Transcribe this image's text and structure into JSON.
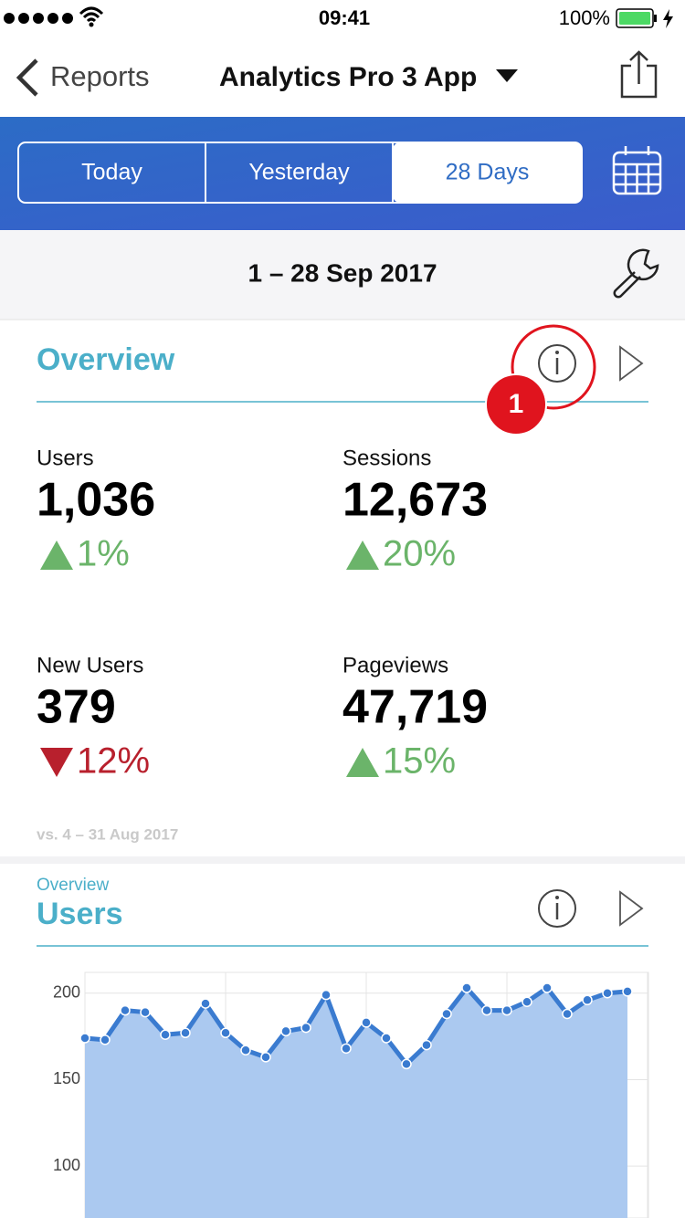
{
  "status_bar": {
    "time": "09:41",
    "battery": "100%"
  },
  "nav": {
    "back": "Reports",
    "title": "Analytics Pro 3 App"
  },
  "segments": [
    "Today",
    "Yesterday",
    "28 Days"
  ],
  "selected_segment": 2,
  "date_range": "1 – 28 Sep 2017",
  "overview": {
    "title": "Overview",
    "badge": "1",
    "metrics": [
      {
        "label": "Users",
        "value": "1,036",
        "change": "1%",
        "direction": "up"
      },
      {
        "label": "Sessions",
        "value": "12,673",
        "change": "20%",
        "direction": "up"
      },
      {
        "label": "New Users",
        "value": "379",
        "change": "12%",
        "direction": "down"
      },
      {
        "label": "Pageviews",
        "value": "47,719",
        "change": "15%",
        "direction": "up"
      }
    ],
    "comparison": "vs. 4 – 31 Aug 2017"
  },
  "users_card": {
    "subtitle": "Overview",
    "title": "Users"
  },
  "chart_data": {
    "type": "area",
    "values": [
      174,
      173,
      190,
      189,
      176,
      177,
      194,
      177,
      167,
      163,
      178,
      180,
      199,
      168,
      183,
      174,
      159,
      170,
      188,
      203,
      190,
      190,
      195,
      203,
      188,
      196,
      200,
      201
    ],
    "color": "#3a7bd0",
    "fill": "#abc9f0",
    "ylim": [
      70,
      212
    ],
    "yticks": [
      100,
      150,
      200
    ],
    "grid": true
  }
}
